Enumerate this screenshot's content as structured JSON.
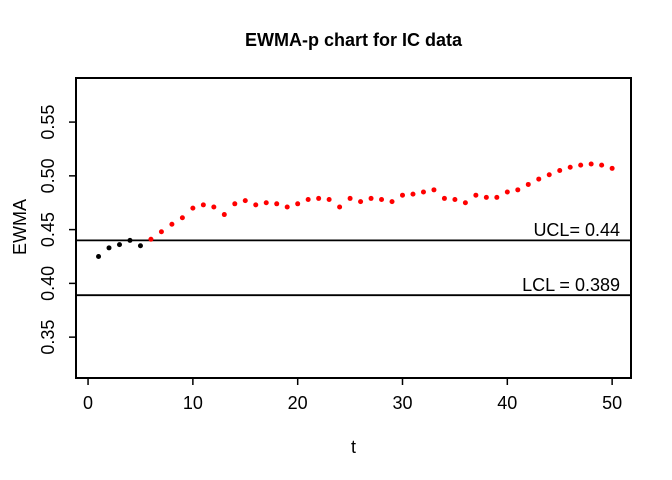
{
  "chart_data": {
    "type": "scatter",
    "title": "EWMA-p chart for IC data",
    "xlabel": "t",
    "ylabel": "EWMA",
    "xlim": [
      -1.15,
      51.8
    ],
    "ylim": [
      0.312,
      0.591
    ],
    "grid": false,
    "legend": "none",
    "x_ticks": [
      {
        "v": 0,
        "label": "0"
      },
      {
        "v": 10,
        "label": "10"
      },
      {
        "v": 20,
        "label": "20"
      },
      {
        "v": 30,
        "label": "30"
      },
      {
        "v": 40,
        "label": "40"
      },
      {
        "v": 50,
        "label": "50"
      }
    ],
    "y_ticks": [
      {
        "v": 0.35,
        "label": "0.35"
      },
      {
        "v": 0.4,
        "label": "0.40"
      },
      {
        "v": 0.45,
        "label": "0.45"
      },
      {
        "v": 0.5,
        "label": "0.50"
      },
      {
        "v": 0.55,
        "label": "0.55"
      }
    ],
    "control_limits": {
      "ucl": {
        "value": 0.44,
        "label": "UCL= 0.44"
      },
      "lcl": {
        "value": 0.389,
        "label": "LCL = 0.389"
      }
    },
    "series": [
      {
        "name": "in-control start-up points (black)",
        "color": "#000000",
        "t": [
          1,
          2,
          3,
          4,
          5
        ],
        "values": [
          0.425,
          0.433,
          0.436,
          0.44,
          0.435
        ]
      },
      {
        "name": "signal points above UCL (red)",
        "color": "#ff0000",
        "t": [
          6,
          7,
          8,
          9,
          10,
          11,
          12,
          13,
          14,
          15,
          16,
          17,
          18,
          19,
          20,
          21,
          22,
          23,
          24,
          25,
          26,
          27,
          28,
          29,
          30,
          31,
          32,
          33,
          34,
          35,
          36,
          37,
          38,
          39,
          40,
          41,
          42,
          43,
          44,
          45,
          46,
          47,
          48,
          49,
          50
        ],
        "values": [
          0.441,
          0.448,
          0.455,
          0.461,
          0.47,
          0.473,
          0.471,
          0.464,
          0.474,
          0.477,
          0.473,
          0.475,
          0.474,
          0.471,
          0.474,
          0.478,
          0.479,
          0.478,
          0.471,
          0.479,
          0.476,
          0.479,
          0.478,
          0.476,
          0.482,
          0.483,
          0.485,
          0.487,
          0.479,
          0.478,
          0.475,
          0.482,
          0.48,
          0.48,
          0.485,
          0.487,
          0.492,
          0.497,
          0.501,
          0.505,
          0.508,
          0.51,
          0.511,
          0.51,
          0.507
        ]
      }
    ]
  },
  "colors": {
    "background": "#ffffff",
    "axis": "#000000",
    "text": "#000000",
    "in_control_point": "#000000",
    "signal_point": "#ff0000"
  }
}
